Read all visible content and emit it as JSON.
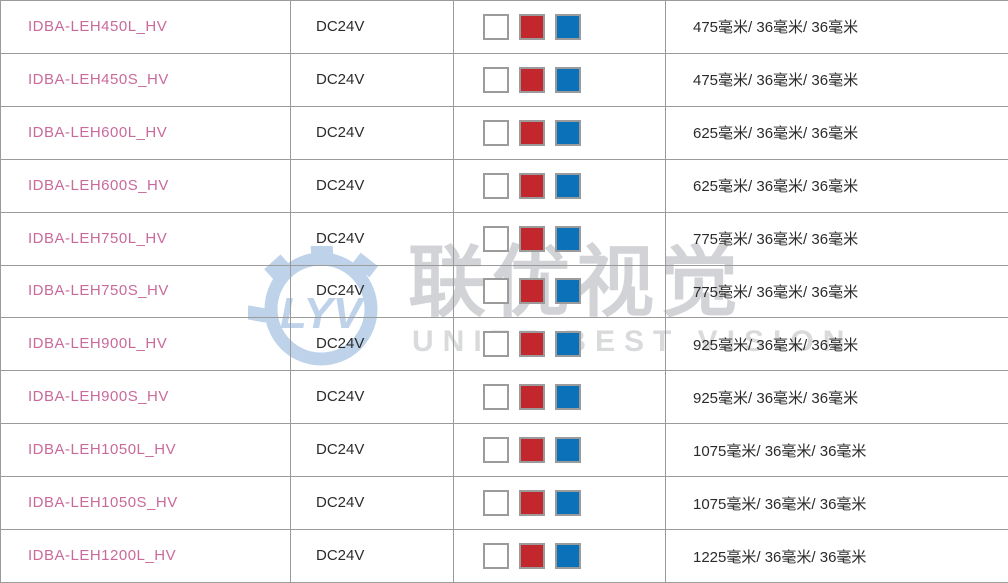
{
  "watermark": {
    "logo_icon": "lyv-gear-logo",
    "cn_text": "联优视觉",
    "en_text": "UNITE BEST VISION"
  },
  "colors": {
    "model_link": "#c96a9b",
    "table_border": "#9b9b9b",
    "watermark_logo_blue": "#bed3ea",
    "watermark_text_gray": "#d2d3d6"
  },
  "table": {
    "swatch_colors": [
      {
        "name": "white",
        "hex": "#ffffff"
      },
      {
        "name": "red",
        "hex": "#c1272d"
      },
      {
        "name": "blue",
        "hex": "#0b72ba"
      }
    ],
    "rows": [
      {
        "model": "IDBA-LEH450L_HV",
        "voltage": "DC24V",
        "dimensions": "475毫米/ 36毫米/ 36毫米"
      },
      {
        "model": "IDBA-LEH450S_HV",
        "voltage": "DC24V",
        "dimensions": "475毫米/ 36毫米/ 36毫米"
      },
      {
        "model": "IDBA-LEH600L_HV",
        "voltage": "DC24V",
        "dimensions": "625毫米/ 36毫米/ 36毫米"
      },
      {
        "model": "IDBA-LEH600S_HV",
        "voltage": "DC24V",
        "dimensions": "625毫米/ 36毫米/ 36毫米"
      },
      {
        "model": "IDBA-LEH750L_HV",
        "voltage": "DC24V",
        "dimensions": "775毫米/ 36毫米/ 36毫米"
      },
      {
        "model": "IDBA-LEH750S_HV",
        "voltage": "DC24V",
        "dimensions": "775毫米/ 36毫米/ 36毫米"
      },
      {
        "model": "IDBA-LEH900L_HV",
        "voltage": "DC24V",
        "dimensions": "925毫米/ 36毫米/ 36毫米"
      },
      {
        "model": "IDBA-LEH900S_HV",
        "voltage": "DC24V",
        "dimensions": "925毫米/ 36毫米/ 36毫米"
      },
      {
        "model": "IDBA-LEH1050L_HV",
        "voltage": "DC24V",
        "dimensions": "1075毫米/ 36毫米/ 36毫米"
      },
      {
        "model": "IDBA-LEH1050S_HV",
        "voltage": "DC24V",
        "dimensions": "1075毫米/ 36毫米/ 36毫米"
      },
      {
        "model": "IDBA-LEH1200L_HV",
        "voltage": "DC24V",
        "dimensions": "1225毫米/ 36毫米/ 36毫米"
      }
    ]
  }
}
